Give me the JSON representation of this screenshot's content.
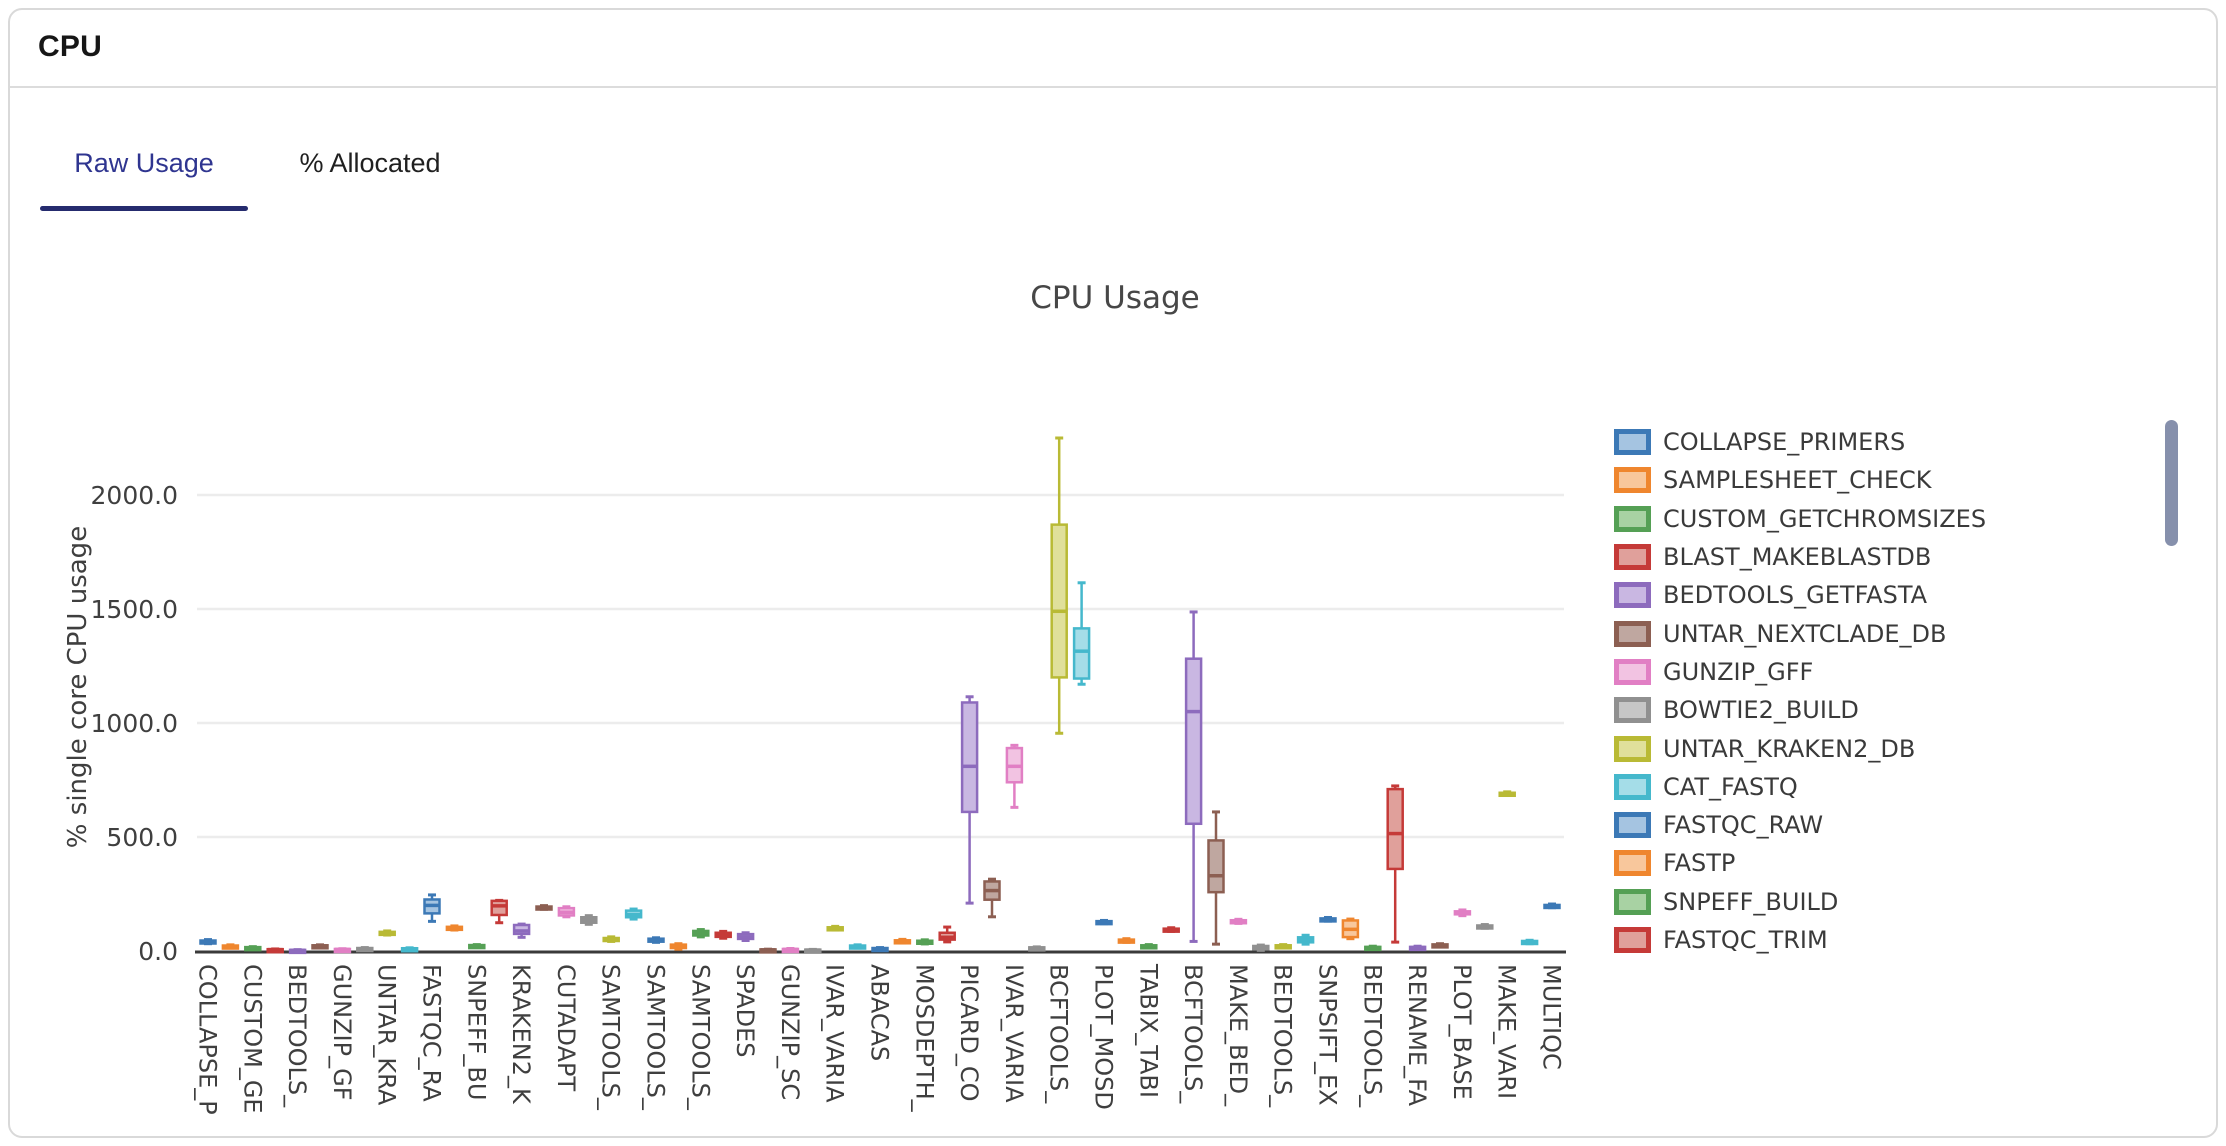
{
  "card": {
    "header_title": "CPU"
  },
  "tabs": [
    {
      "label": "Raw Usage",
      "active": true
    },
    {
      "label": "% Allocated",
      "active": false
    }
  ],
  "legend": {
    "items": [
      {
        "name": "COLLAPSE_PRIMERS",
        "color": "blue"
      },
      {
        "name": "SAMPLESHEET_CHECK",
        "color": "orange"
      },
      {
        "name": "CUSTOM_GETCHROMSIZES",
        "color": "green"
      },
      {
        "name": "BLAST_MAKEBLASTDB",
        "color": "red"
      },
      {
        "name": "BEDTOOLS_GETFASTA",
        "color": "purple"
      },
      {
        "name": "UNTAR_NEXTCLADE_DB",
        "color": "brown"
      },
      {
        "name": "GUNZIP_GFF",
        "color": "pink"
      },
      {
        "name": "BOWTIE2_BUILD",
        "color": "gray"
      },
      {
        "name": "UNTAR_KRAKEN2_DB",
        "color": "olive"
      },
      {
        "name": "CAT_FASTQ",
        "color": "cyan"
      },
      {
        "name": "FASTQC_RAW",
        "color": "blue"
      },
      {
        "name": "FASTP",
        "color": "orange"
      },
      {
        "name": "SNPEFF_BUILD",
        "color": "green"
      },
      {
        "name": "FASTQC_TRIM",
        "color": "red"
      }
    ]
  },
  "chart_data": {
    "type": "box",
    "title": "CPU Usage",
    "ylabel": "% single core CPU usage",
    "ylim": [
      0,
      2320
    ],
    "grid": true,
    "legend_position": "right",
    "yticks": [
      {
        "value": 0,
        "label": "0.0"
      },
      {
        "value": 500,
        "label": "500.0"
      },
      {
        "value": 1000,
        "label": "1000.0"
      },
      {
        "value": 1500,
        "label": "1500.0"
      },
      {
        "value": 2000,
        "label": "2000.0"
      }
    ],
    "palette_order": [
      "blue",
      "orange",
      "green",
      "red",
      "purple",
      "brown",
      "pink",
      "gray",
      "olive",
      "cyan"
    ],
    "palette": {
      "blue": {
        "stroke": "#3c79b6",
        "fill": "#a5c4e1"
      },
      "orange": {
        "stroke": "#ef862e",
        "fill": "#f8c79c"
      },
      "green": {
        "stroke": "#55a055",
        "fill": "#a8d2a3"
      },
      "red": {
        "stroke": "#c53a38",
        "fill": "#e0a09b"
      },
      "purple": {
        "stroke": "#8d6bbd",
        "fill": "#c9b7e2"
      },
      "brown": {
        "stroke": "#8c5f52",
        "fill": "#bfa7a0"
      },
      "pink": {
        "stroke": "#e17fc4",
        "fill": "#f2c3e2"
      },
      "gray": {
        "stroke": "#909090",
        "fill": "#c6c6c6"
      },
      "olive": {
        "stroke": "#b9ba35",
        "fill": "#e0e09b"
      },
      "cyan": {
        "stroke": "#45b8cc",
        "fill": "#a5dde8"
      }
    },
    "note": "61 box traces; x tick labels shown for every other trace (truncated by clipping)",
    "series": [
      {
        "label": "COLLAPSE_P",
        "lo": 32,
        "q1": 36,
        "med": 41,
        "q3": 46,
        "hi": 50
      },
      {
        "label": "",
        "lo": 13,
        "q1": 16,
        "med": 20,
        "q3": 24,
        "hi": 27
      },
      {
        "label": "CUSTOM_GE",
        "lo": 8,
        "q1": 11,
        "med": 14,
        "q3": 17,
        "hi": 19
      },
      {
        "label": "",
        "lo": 3,
        "q1": 4,
        "med": 6,
        "q3": 8,
        "hi": 9
      },
      {
        "label": "BEDTOOLS_",
        "lo": 1,
        "q1": 2,
        "med": 3,
        "q3": 5,
        "hi": 6
      },
      {
        "label": "",
        "lo": 17,
        "q1": 20,
        "med": 22,
        "q3": 25,
        "hi": 27
      },
      {
        "label": "GUNZIP_GF",
        "lo": 3,
        "q1": 5,
        "med": 7,
        "q3": 9,
        "hi": 10
      },
      {
        "label": "",
        "lo": 6,
        "q1": 8,
        "med": 10,
        "q3": 13,
        "hi": 15
      },
      {
        "label": "UNTAR_KRA",
        "lo": 70,
        "q1": 75,
        "med": 79,
        "q3": 84,
        "hi": 88
      },
      {
        "label": "",
        "lo": 5,
        "q1": 7,
        "med": 10,
        "q3": 12,
        "hi": 14
      },
      {
        "label": "FASTQC_RA",
        "lo": 130,
        "q1": 165,
        "med": 200,
        "q3": 226,
        "hi": 246
      },
      {
        "label": "",
        "lo": 92,
        "q1": 97,
        "med": 102,
        "q3": 106,
        "hi": 110
      },
      {
        "label": "SNPEFF_BU",
        "lo": 18,
        "q1": 21,
        "med": 23,
        "q3": 26,
        "hi": 28
      },
      {
        "label": "",
        "lo": 124,
        "q1": 158,
        "med": 198,
        "q3": 220,
        "hi": 222
      },
      {
        "label": "KRAKEN2_K",
        "lo": 60,
        "q1": 75,
        "med": 88,
        "q3": 114,
        "hi": 118
      },
      {
        "label": "",
        "lo": 183,
        "q1": 187,
        "med": 191,
        "q3": 195,
        "hi": 199
      },
      {
        "label": "CUTADAPT",
        "lo": 150,
        "q1": 156,
        "med": 170,
        "q3": 188,
        "hi": 194
      },
      {
        "label": "",
        "lo": 117,
        "q1": 124,
        "med": 135,
        "q3": 148,
        "hi": 155
      },
      {
        "label": "SAMTOOLS_",
        "lo": 42,
        "q1": 47,
        "med": 52,
        "q3": 57,
        "hi": 62
      },
      {
        "label": "",
        "lo": 140,
        "q1": 148,
        "med": 160,
        "q3": 177,
        "hi": 184
      },
      {
        "label": "SAMTOOLS_",
        "lo": 38,
        "q1": 43,
        "med": 48,
        "q3": 54,
        "hi": 58
      },
      {
        "label": "",
        "lo": 8,
        "q1": 13,
        "med": 20,
        "q3": 28,
        "hi": 32
      },
      {
        "label": "SAMTOOLS_",
        "lo": 62,
        "q1": 68,
        "med": 77,
        "q3": 88,
        "hi": 94
      },
      {
        "label": "",
        "lo": 56,
        "q1": 62,
        "med": 70,
        "q3": 80,
        "hi": 86
      },
      {
        "label": "SPADES",
        "lo": 46,
        "q1": 53,
        "med": 62,
        "q3": 74,
        "hi": 80
      },
      {
        "label": "",
        "lo": 2,
        "q1": 3,
        "med": 5,
        "q3": 7,
        "hi": 8
      },
      {
        "label": "GUNZIP_SC",
        "lo": 3,
        "q1": 5,
        "med": 7,
        "q3": 9,
        "hi": 11
      },
      {
        "label": "",
        "lo": 1,
        "q1": 2,
        "med": 4,
        "q3": 6,
        "hi": 7
      },
      {
        "label": "IVAR_VARIA",
        "lo": 92,
        "q1": 96,
        "med": 100,
        "q3": 104,
        "hi": 108
      },
      {
        "label": "",
        "lo": 13,
        "q1": 16,
        "med": 20,
        "q3": 24,
        "hi": 27
      },
      {
        "label": "ABACAS",
        "lo": 5,
        "q1": 7,
        "med": 10,
        "q3": 13,
        "hi": 15
      },
      {
        "label": "",
        "lo": 35,
        "q1": 39,
        "med": 43,
        "q3": 47,
        "hi": 51
      },
      {
        "label": "MOSDEPTH_",
        "lo": 31,
        "q1": 35,
        "med": 40,
        "q3": 45,
        "hi": 49
      },
      {
        "label": "",
        "lo": 40,
        "q1": 50,
        "med": 60,
        "q3": 80,
        "hi": 105
      },
      {
        "label": "PICARD_CO",
        "lo": 210,
        "q1": 610,
        "med": 810,
        "q3": 1090,
        "hi": 1115
      },
      {
        "label": "",
        "lo": 150,
        "q1": 225,
        "med": 265,
        "q3": 305,
        "hi": 315
      },
      {
        "label": "IVAR_VARIA",
        "lo": 630,
        "q1": 740,
        "med": 810,
        "q3": 890,
        "hi": 902
      },
      {
        "label": "",
        "lo": 8,
        "q1": 10,
        "med": 13,
        "q3": 16,
        "hi": 18
      },
      {
        "label": "BCFTOOLS_",
        "lo": 955,
        "q1": 1200,
        "med": 1490,
        "q3": 1870,
        "hi": 2250
      },
      {
        "label": "",
        "lo": 1170,
        "q1": 1195,
        "med": 1315,
        "q3": 1415,
        "hi": 1615
      },
      {
        "label": "PLOT_MOSD",
        "lo": 120,
        "q1": 123,
        "med": 127,
        "q3": 131,
        "hi": 134
      },
      {
        "label": "",
        "lo": 38,
        "q1": 42,
        "med": 46,
        "q3": 50,
        "hi": 54
      },
      {
        "label": "TABIX_TABI",
        "lo": 14,
        "q1": 17,
        "med": 21,
        "q3": 25,
        "hi": 28
      },
      {
        "label": "",
        "lo": 86,
        "q1": 90,
        "med": 94,
        "q3": 98,
        "hi": 102
      },
      {
        "label": "BCFTOOLS_",
        "lo": 42,
        "q1": 558,
        "med": 1050,
        "q3": 1282,
        "hi": 1487
      },
      {
        "label": "",
        "lo": 30,
        "q1": 258,
        "med": 330,
        "q3": 485,
        "hi": 610
      },
      {
        "label": "MAKE_BED_",
        "lo": 121,
        "q1": 125,
        "med": 130,
        "q3": 135,
        "hi": 139
      },
      {
        "label": "",
        "lo": 3,
        "q1": 8,
        "med": 15,
        "q3": 22,
        "hi": 26
      },
      {
        "label": "BEDTOOLS_",
        "lo": 16,
        "q1": 19,
        "med": 22,
        "q3": 25,
        "hi": 28
      },
      {
        "label": "",
        "lo": 30,
        "q1": 38,
        "med": 48,
        "q3": 60,
        "hi": 69
      },
      {
        "label": "SNPSIFT_EX",
        "lo": 131,
        "q1": 135,
        "med": 139,
        "q3": 143,
        "hi": 147
      },
      {
        "label": "",
        "lo": 54,
        "q1": 61,
        "med": 95,
        "q3": 134,
        "hi": 140
      },
      {
        "label": "BEDTOOLS_",
        "lo": 9,
        "q1": 12,
        "med": 15,
        "q3": 18,
        "hi": 21
      },
      {
        "label": "",
        "lo": 39,
        "q1": 360,
        "med": 515,
        "q3": 710,
        "hi": 724
      },
      {
        "label": "RENAME_FA",
        "lo": 9,
        "q1": 12,
        "med": 15,
        "q3": 18,
        "hi": 21
      },
      {
        "label": "",
        "lo": 18,
        "q1": 21,
        "med": 25,
        "q3": 29,
        "hi": 32
      },
      {
        "label": "PLOT_BASE",
        "lo": 155,
        "q1": 161,
        "med": 167,
        "q3": 174,
        "hi": 180
      },
      {
        "label": "",
        "lo": 100,
        "q1": 104,
        "med": 108,
        "q3": 112,
        "hi": 116
      },
      {
        "label": "MAKE_VARI",
        "lo": 683,
        "q1": 687,
        "med": 691,
        "q3": 694,
        "hi": 698
      },
      {
        "label": "",
        "lo": 32,
        "q1": 36,
        "med": 40,
        "q3": 44,
        "hi": 47
      },
      {
        "label": "MULTIQC",
        "lo": 190,
        "q1": 194,
        "med": 198,
        "q3": 202,
        "hi": 206
      }
    ]
  }
}
